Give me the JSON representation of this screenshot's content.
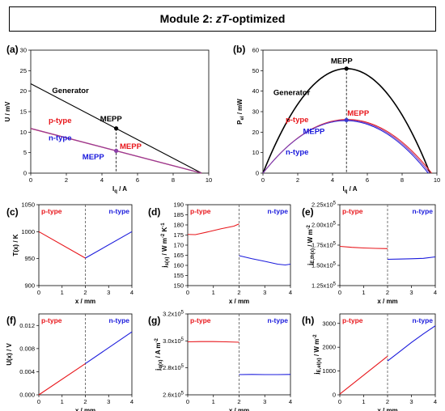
{
  "title": {
    "prefix": "Module 2: ",
    "italic": "zT",
    "suffix": "-optimized"
  },
  "colors": {
    "p": "#e8161b",
    "n": "#1a1adc",
    "gen": "#000000",
    "pv": "#8b3fa8",
    "pn": "#3b3bd0"
  },
  "chart_data": [
    {
      "id": "a",
      "type": "line",
      "panel_label": "(a)",
      "xlabel": "I_q / A",
      "ylabel": "U / mV",
      "xlim": [
        0,
        10
      ],
      "ylim": [
        0,
        30
      ],
      "xticks": [
        0,
        2,
        4,
        6,
        8,
        10
      ],
      "yticks": [
        0,
        5,
        10,
        15,
        20,
        25,
        30
      ],
      "series": [
        {
          "name": "Generator",
          "color": "#000000",
          "x": [
            0,
            9.6
          ],
          "y": [
            21.8,
            0
          ]
        },
        {
          "name": "p-type",
          "color": "#e8161b",
          "x": [
            0,
            9.6
          ],
          "y": [
            10.9,
            0
          ]
        },
        {
          "name": "n-type",
          "color": "#1a1adc",
          "x": [
            0,
            9.6
          ],
          "y": [
            10.9,
            0
          ]
        }
      ],
      "points": [
        {
          "label": "MEPP",
          "x": 4.8,
          "y": 10.9,
          "color": "#000000"
        },
        {
          "label": "MEPP",
          "x": 4.8,
          "y": 5.45,
          "color": "#8b3fa8"
        }
      ],
      "dashed_x": 4.8,
      "annotations": [
        {
          "text": "Generator",
          "x": 1.2,
          "y": 19.5,
          "color": "#000000"
        },
        {
          "text": "MEPP",
          "x": 3.9,
          "y": 12.6,
          "color": "#000000"
        },
        {
          "text": "p-type",
          "x": 1.0,
          "y": 12.2,
          "color": "#e8161b"
        },
        {
          "text": "n-type",
          "x": 1.0,
          "y": 8.0,
          "color": "#1a1adc"
        },
        {
          "text": "MEPP",
          "x": 5.0,
          "y": 5.9,
          "color": "#e8161b"
        },
        {
          "text": "MEPP",
          "x": 2.9,
          "y": 3.4,
          "color": "#1a1adc"
        }
      ]
    },
    {
      "id": "b",
      "type": "line",
      "panel_label": "(b)",
      "xlabel": "I_q / A",
      "ylabel": "P_el / mW",
      "xlim": [
        0,
        10
      ],
      "ylim": [
        0,
        60
      ],
      "xticks": [
        0,
        2,
        4,
        6,
        8,
        10
      ],
      "yticks": [
        0,
        10,
        20,
        30,
        40,
        50,
        60
      ],
      "parabolas": [
        {
          "name": "Generator",
          "color": "#000000",
          "peak_x": 4.8,
          "peak_y": 51,
          "zero_x": 9.6
        },
        {
          "name": "p-type",
          "color": "#e8161b",
          "peak_x": 4.85,
          "peak_y": 26.2,
          "zero_x": 9.7
        },
        {
          "name": "n-type",
          "color": "#1a1adc",
          "peak_x": 4.75,
          "peak_y": 25.6,
          "zero_x": 9.5
        },
        {
          "name": "",
          "color": "#8b3fa8",
          "peak_x": 4.8,
          "peak_y": 25.9,
          "zero_x": 9.6
        }
      ],
      "points": [
        {
          "label": "MEPP",
          "x": 4.8,
          "y": 51,
          "color": "#000000"
        },
        {
          "label": "MEPP",
          "x": 4.8,
          "y": 25.9,
          "color": "#3b3bd0"
        }
      ],
      "dashed_x": 4.8,
      "annotations": [
        {
          "text": "MEPP",
          "x": 3.9,
          "y": 53.5,
          "color": "#000000"
        },
        {
          "text": "Generator",
          "x": 0.6,
          "y": 38,
          "color": "#000000"
        },
        {
          "text": "p-type",
          "x": 1.3,
          "y": 24.8,
          "color": "#e8161b"
        },
        {
          "text": "MEPP",
          "x": 4.85,
          "y": 28.0,
          "color": "#e8161b"
        },
        {
          "text": "MEPP",
          "x": 2.3,
          "y": 19.2,
          "color": "#1a1adc"
        },
        {
          "text": "n-type",
          "x": 1.3,
          "y": 9.0,
          "color": "#1a1adc"
        }
      ]
    },
    {
      "id": "c",
      "type": "line",
      "panel_label": "(c)",
      "xlabel": "x / mm",
      "ylabel": "T(x) / K",
      "xlim": [
        0,
        4
      ],
      "ylim": [
        900,
        1050
      ],
      "xticks": [
        0,
        1,
        2,
        3,
        4
      ],
      "yticks": [
        900,
        950,
        1000,
        1050
      ],
      "series": [
        {
          "name": "p-type",
          "color": "#e8161b",
          "x": [
            0,
            2
          ],
          "y": [
            1000,
            951
          ]
        },
        {
          "name": "n-type",
          "color": "#1a1adc",
          "x": [
            2,
            4
          ],
          "y": [
            951,
            1000
          ]
        }
      ],
      "dashed_x": 2
    },
    {
      "id": "d",
      "type": "line",
      "panel_label": "(d)",
      "xlabel": "x / mm",
      "ylabel": "j_s(x) / W m^-2 K^-1",
      "xlim": [
        0,
        4
      ],
      "ylim": [
        150,
        190
      ],
      "xticks": [
        0,
        1,
        2,
        3,
        4
      ],
      "yticks": [
        150,
        155,
        160,
        165,
        170,
        175,
        180,
        185,
        190
      ],
      "series": [
        {
          "name": "p-type",
          "color": "#e8161b",
          "x": [
            0,
            0.3,
            0.8,
            1.3,
            1.8,
            2
          ],
          "y": [
            175.3,
            175.2,
            176.6,
            178.1,
            179.4,
            180.5
          ]
        },
        {
          "name": "n-type",
          "color": "#1a1adc",
          "x": [
            2,
            2.5,
            3.0,
            3.5,
            3.8,
            4
          ],
          "y": [
            164.8,
            163.3,
            162.0,
            160.6,
            160.2,
            160.6
          ]
        }
      ],
      "dashed_x": 2
    },
    {
      "id": "e",
      "type": "line",
      "panel_label": "(e)",
      "xlabel": "x / mm",
      "ylabel": "j_E,th(x) / W m^-2",
      "xlim": [
        0,
        4
      ],
      "ylim": [
        125000,
        225000
      ],
      "xticks": [
        0,
        1,
        2,
        3,
        4
      ],
      "yticks": [
        125000,
        150000,
        175000,
        200000,
        225000
      ],
      "yticklabels": [
        "1.25x10^5",
        "1.50x10^5",
        "1.75x10^5",
        "2.00x10^5",
        "2.25x10^5"
      ],
      "series": [
        {
          "name": "p-type",
          "color": "#e8161b",
          "x": [
            0,
            0.5,
            1.0,
            1.5,
            2
          ],
          "y": [
            173500,
            172300,
            171500,
            171000,
            170700
          ]
        },
        {
          "name": "n-type",
          "color": "#1a1adc",
          "x": [
            2,
            2.5,
            3.0,
            3.5,
            4
          ],
          "y": [
            157500,
            157800,
            158200,
            158700,
            160500
          ]
        }
      ],
      "dashed_x": 2
    },
    {
      "id": "f",
      "type": "line",
      "panel_label": "(f)",
      "xlabel": "x / mm",
      "ylabel": "U(x) / V",
      "xlim": [
        0,
        4
      ],
      "ylim": [
        0,
        0.014
      ],
      "xticks": [
        0,
        1,
        2,
        3,
        4
      ],
      "yticks": [
        0,
        0.004,
        0.008,
        0.012
      ],
      "yticklabels": [
        "0.000",
        "0.004",
        "0.008",
        "0.012"
      ],
      "series": [
        {
          "name": "p-type",
          "color": "#e8161b",
          "x": [
            0,
            2
          ],
          "y": [
            0.0,
            0.0054
          ]
        },
        {
          "name": "n-type",
          "color": "#1a1adc",
          "x": [
            2,
            4
          ],
          "y": [
            0.0054,
            0.0109
          ]
        }
      ],
      "dashed_x": 2
    },
    {
      "id": "g",
      "type": "line",
      "panel_label": "(g)",
      "xlabel": "x / mm",
      "ylabel": "j_q(x) / A m^-2",
      "xlim": [
        0,
        4
      ],
      "ylim": [
        260000,
        320000
      ],
      "xticks": [
        0,
        1,
        2,
        3,
        4
      ],
      "yticks": [
        260000,
        280000,
        300000,
        320000
      ],
      "yticklabels": [
        "2.6x10^5",
        "2.8x10^5",
        "3.0x10^5",
        "3.2x10^5"
      ],
      "series": [
        {
          "name": "p-type",
          "color": "#e8161b",
          "x": [
            0,
            0.5,
            1,
            1.5,
            2
          ],
          "y": [
            299300,
            299500,
            299500,
            299300,
            299000
          ]
        },
        {
          "name": "n-type",
          "color": "#1a1adc",
          "x": [
            2,
            2.5,
            3,
            3.5,
            4
          ],
          "y": [
            275000,
            275100,
            275000,
            275000,
            275100
          ]
        }
      ],
      "dashed_x": 2
    },
    {
      "id": "h",
      "type": "line",
      "panel_label": "(h)",
      "xlabel": "x / mm",
      "ylabel": "j_E,el(x) / W m^-2",
      "xlim": [
        0,
        4
      ],
      "ylim": [
        0,
        3400
      ],
      "xticks": [
        0,
        1,
        2,
        3,
        4
      ],
      "yticks": [
        0,
        1000,
        2000,
        3000
      ],
      "series": [
        {
          "name": "p-type",
          "color": "#e8161b",
          "x": [
            0,
            2
          ],
          "y": [
            30,
            1620
          ]
        },
        {
          "name": "n-type",
          "color": "#1a1adc",
          "x": [
            2,
            2.5,
            3,
            3.5,
            4
          ],
          "y": [
            1420,
            1810,
            2200,
            2560,
            2900
          ]
        }
      ],
      "dashed_x": 2
    }
  ],
  "small_labels": {
    "p": "p-type",
    "n": "n-type"
  }
}
